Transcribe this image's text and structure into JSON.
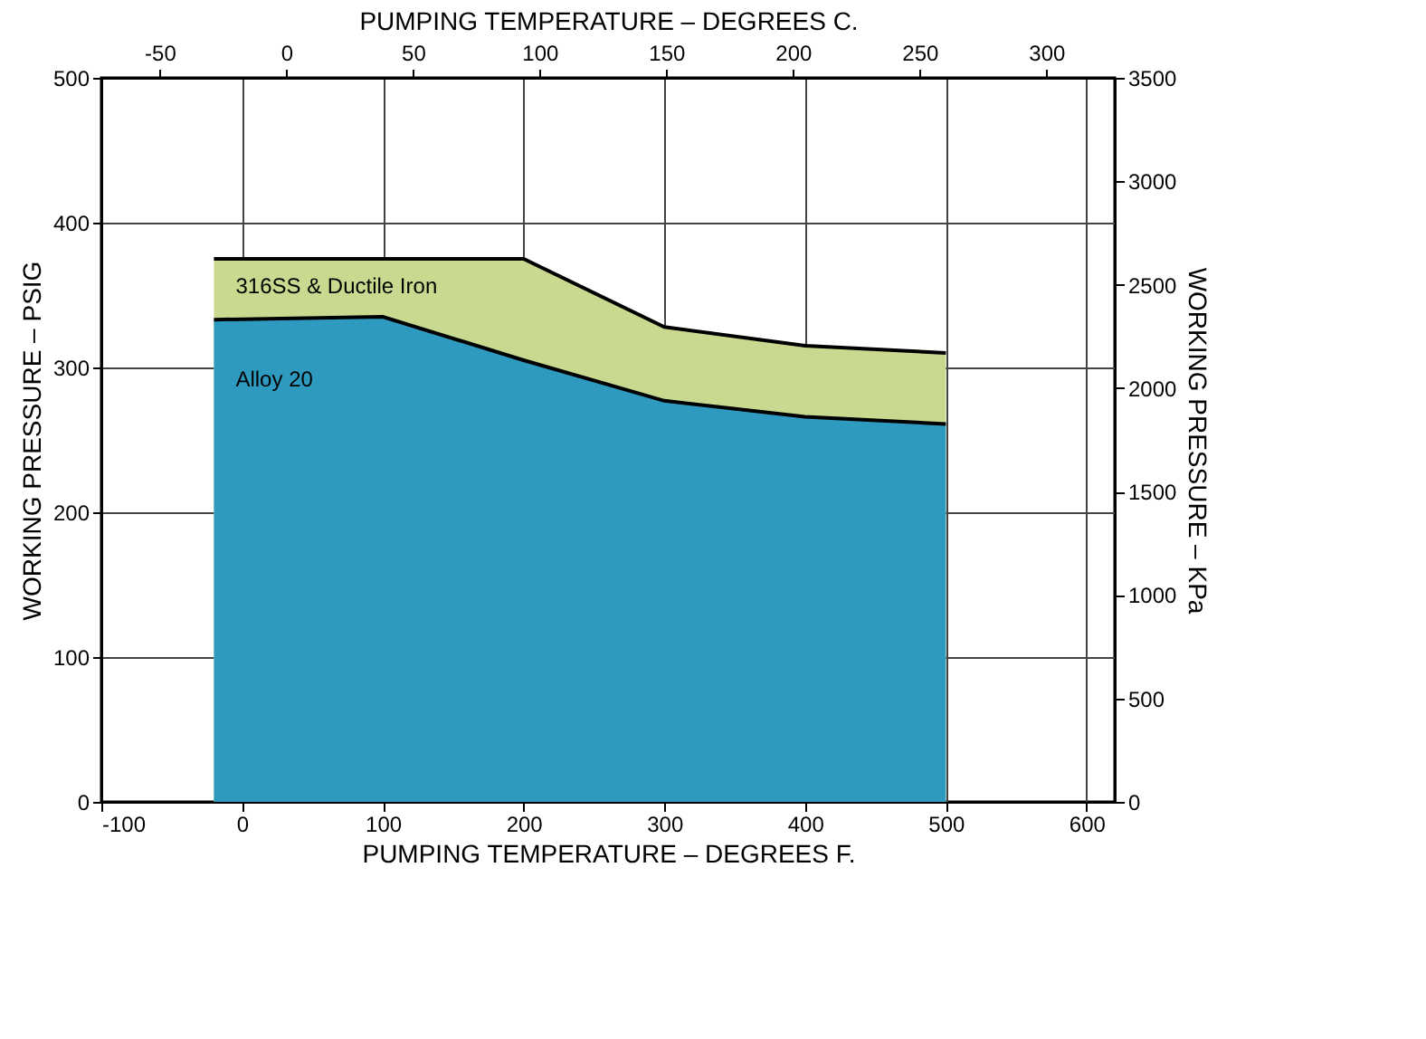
{
  "chart_data": {
    "type": "area",
    "xlabel": "PUMPING TEMPERATURE – DEGREES F.",
    "x2label": "PUMPING TEMPERATURE – DEGREES C.",
    "ylabel": "WORKING PRESSURE – PSIG",
    "y2label": "WORKING PRESSURE – KPa",
    "x": [
      -20,
      100,
      200,
      300,
      400,
      500
    ],
    "series": [
      {
        "name": "316SS & Ductile Iron",
        "color": "#c9d98f",
        "values": [
          375,
          375,
          375,
          328,
          315,
          310
        ]
      },
      {
        "name": "Alloy 20",
        "color": "#2f9ac0",
        "values": [
          333,
          335,
          305,
          277,
          266,
          261
        ]
      }
    ],
    "xlim": [
      -100,
      620
    ],
    "xticks": [
      -100,
      0,
      100,
      200,
      300,
      400,
      500,
      600
    ],
    "x2lim": [
      -73,
      327
    ],
    "x2ticks": [
      -50,
      0,
      50,
      100,
      150,
      200,
      250,
      300
    ],
    "ylim": [
      0,
      500
    ],
    "yticks": [
      0,
      100,
      200,
      300,
      400,
      500
    ],
    "y2lim": [
      0,
      3500
    ],
    "y2ticks": [
      0,
      500,
      1000,
      1500,
      2000,
      2500,
      3000,
      3500
    ],
    "grid": true
  }
}
